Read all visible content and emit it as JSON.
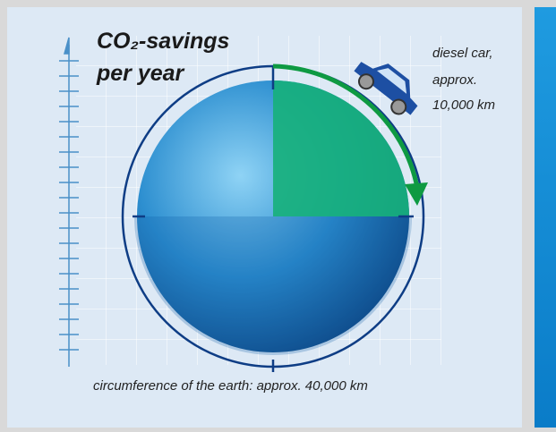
{
  "title_lines": [
    "CO₂-savings",
    "per year"
  ],
  "annotation_lines": [
    "diesel car,",
    "approx.",
    "10,000 km"
  ],
  "caption": "circumference of the earth: approx. 40,000 km"
}
